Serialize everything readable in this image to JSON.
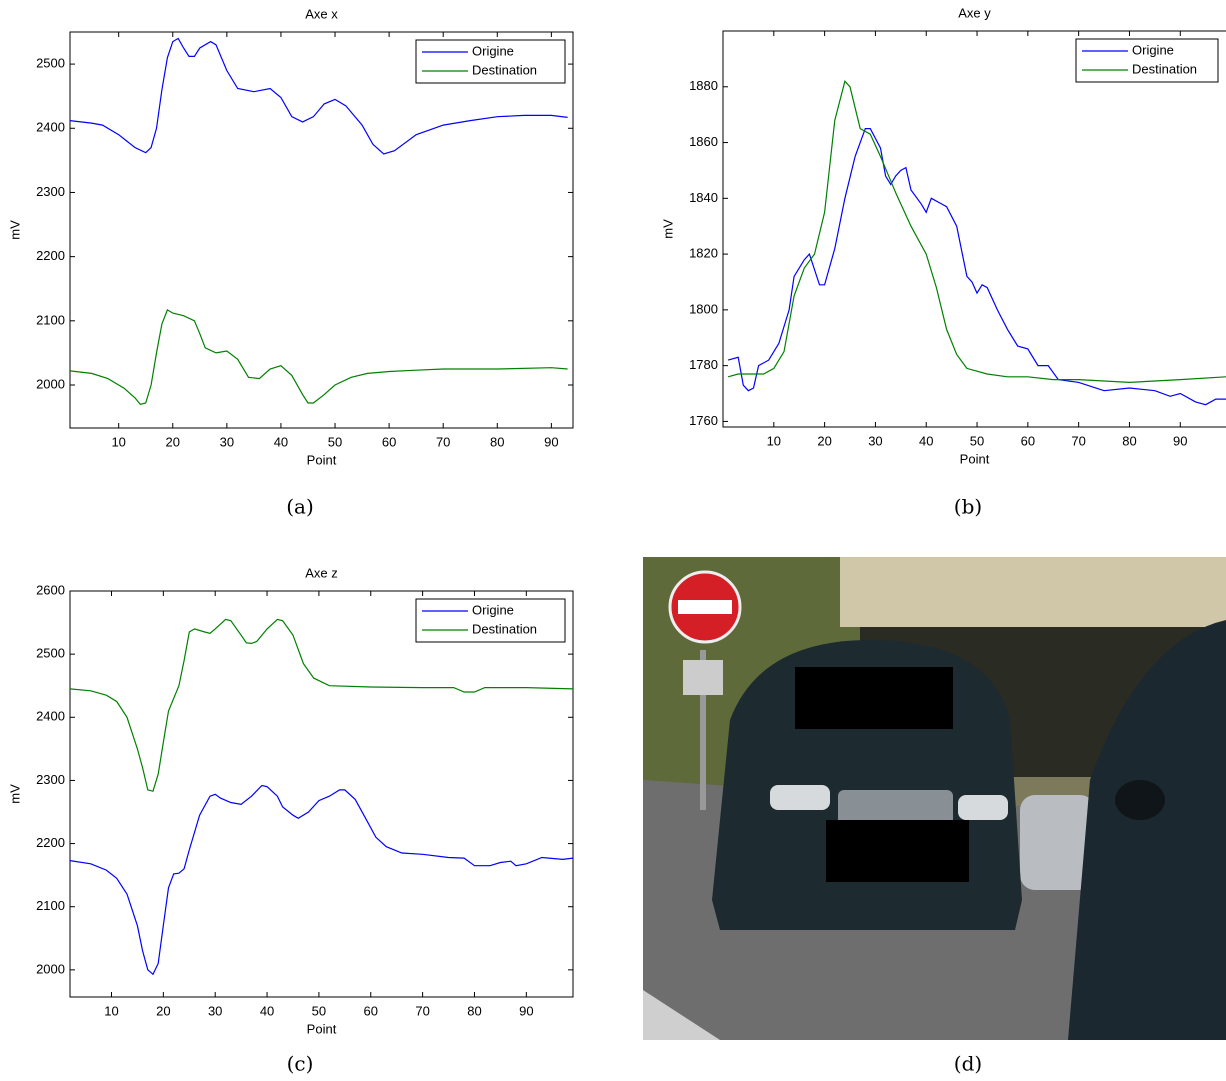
{
  "chart_data": [
    {
      "type": "line",
      "title": "Axe x",
      "xlabel": "Point",
      "ylabel": "mV",
      "legend": "upper right",
      "grid": false,
      "xlim": [
        1,
        94
      ],
      "xticks": [
        10,
        20,
        30,
        40,
        50,
        60,
        70,
        80,
        90
      ],
      "ylim": [
        1933,
        2550
      ],
      "yticks": [
        2000,
        2100,
        2200,
        2300,
        2400,
        2500
      ],
      "series": [
        {
          "name": "Origine",
          "color": "#0000ff",
          "x": [
            1,
            5,
            7,
            10,
            13,
            15,
            16,
            17,
            18,
            19,
            20,
            21,
            22,
            23,
            24,
            25,
            27,
            28,
            30,
            32,
            35,
            38,
            40,
            42,
            44,
            46,
            48,
            50,
            52,
            55,
            57,
            59,
            61,
            65,
            70,
            75,
            80,
            85,
            90,
            93
          ],
          "values": [
            2412,
            2408,
            2405,
            2390,
            2370,
            2362,
            2370,
            2400,
            2460,
            2510,
            2535,
            2540,
            2525,
            2512,
            2512,
            2525,
            2535,
            2530,
            2490,
            2462,
            2457,
            2462,
            2448,
            2418,
            2410,
            2418,
            2438,
            2445,
            2435,
            2405,
            2375,
            2360,
            2365,
            2390,
            2405,
            2412,
            2418,
            2420,
            2420,
            2417
          ]
        },
        {
          "name": "Destination",
          "color": "#008000",
          "x": [
            1,
            5,
            8,
            11,
            13,
            14,
            15,
            16,
            17,
            18,
            19,
            20,
            22,
            24,
            25,
            26,
            28,
            30,
            32,
            34,
            36,
            38,
            40,
            42,
            44,
            45,
            46,
            48,
            50,
            53,
            56,
            60,
            65,
            70,
            80,
            90,
            93
          ],
          "values": [
            2022,
            2018,
            2010,
            1995,
            1980,
            1970,
            1972,
            2000,
            2050,
            2095,
            2117,
            2112,
            2108,
            2100,
            2080,
            2058,
            2050,
            2053,
            2040,
            2012,
            2010,
            2025,
            2030,
            2015,
            1985,
            1972,
            1972,
            1985,
            2000,
            2012,
            2018,
            2021,
            2023,
            2025,
            2025,
            2027,
            2025
          ]
        }
      ]
    },
    {
      "type": "line",
      "title": "Axe y",
      "xlabel": "Point",
      "ylabel": "mV",
      "legend": "upper right",
      "grid": false,
      "xlim": [
        0,
        99
      ],
      "xticks": [
        10,
        20,
        30,
        40,
        50,
        60,
        70,
        80,
        90
      ],
      "ylim": [
        1758,
        1900
      ],
      "yticks": [
        1760,
        1780,
        1800,
        1820,
        1840,
        1860,
        1880
      ],
      "series": [
        {
          "name": "Origine",
          "color": "#0000ff",
          "x": [
            1,
            3,
            4,
            5,
            6,
            7,
            9,
            11,
            13,
            14,
            16,
            17,
            19,
            20,
            22,
            24,
            26,
            28,
            29,
            31,
            32,
            33,
            34,
            35,
            36,
            37,
            39,
            40,
            41,
            43,
            44,
            46,
            48,
            49,
            50,
            51,
            52,
            54,
            56,
            58,
            60,
            62,
            64,
            66,
            70,
            75,
            80,
            85,
            88,
            90,
            93,
            95,
            97,
            99
          ],
          "values": [
            1782,
            1783,
            1773,
            1771,
            1772,
            1780,
            1782,
            1788,
            1800,
            1812,
            1818,
            1820,
            1809,
            1809,
            1822,
            1840,
            1855,
            1865,
            1865,
            1858,
            1848,
            1845,
            1848,
            1850,
            1851,
            1843,
            1838,
            1835,
            1840,
            1838,
            1837,
            1830,
            1812,
            1810,
            1806,
            1809,
            1808,
            1800,
            1793,
            1787,
            1786,
            1780,
            1780,
            1775,
            1774,
            1771,
            1772,
            1771,
            1769,
            1770,
            1767,
            1766,
            1768,
            1768
          ]
        },
        {
          "name": "Destination",
          "color": "#008000",
          "x": [
            1,
            3,
            8,
            10,
            12,
            14,
            16,
            18,
            20,
            22,
            24,
            25,
            27,
            29,
            31,
            34,
            37,
            40,
            42,
            44,
            46,
            48,
            52,
            56,
            60,
            65,
            70,
            80,
            90,
            99
          ],
          "values": [
            1776,
            1777,
            1777,
            1779,
            1785,
            1805,
            1815,
            1820,
            1835,
            1868,
            1882,
            1880,
            1865,
            1863,
            1855,
            1842,
            1830,
            1820,
            1808,
            1793,
            1784,
            1779,
            1777,
            1776,
            1776,
            1775,
            1775,
            1774,
            1775,
            1776
          ]
        }
      ]
    },
    {
      "type": "line",
      "title": "Axe z",
      "xlabel": "Point",
      "ylabel": "mV",
      "legend": "upper right",
      "grid": false,
      "xlim": [
        2,
        99
      ],
      "xticks": [
        10,
        20,
        30,
        40,
        50,
        60,
        70,
        80,
        90
      ],
      "ylim": [
        1957,
        2600
      ],
      "yticks": [
        2000,
        2100,
        2200,
        2300,
        2400,
        2500,
        2600
      ],
      "series": [
        {
          "name": "Origine",
          "color": "#0000ff",
          "x": [
            2,
            6,
            9,
            11,
            13,
            15,
            16,
            17,
            18,
            19,
            20,
            21,
            22,
            23,
            24,
            25,
            27,
            29,
            30,
            31,
            33,
            35,
            37,
            39,
            40,
            42,
            43,
            45,
            46,
            48,
            50,
            52,
            54,
            55,
            57,
            59,
            61,
            63,
            66,
            70,
            75,
            78,
            80,
            83,
            85,
            87,
            88,
            90,
            93,
            97,
            99
          ],
          "values": [
            2173,
            2168,
            2158,
            2145,
            2120,
            2070,
            2030,
            2000,
            1993,
            2010,
            2070,
            2130,
            2152,
            2153,
            2160,
            2190,
            2245,
            2275,
            2278,
            2272,
            2265,
            2262,
            2275,
            2292,
            2290,
            2275,
            2258,
            2245,
            2240,
            2250,
            2268,
            2275,
            2285,
            2285,
            2270,
            2240,
            2210,
            2195,
            2185,
            2183,
            2178,
            2177,
            2165,
            2165,
            2170,
            2172,
            2165,
            2168,
            2178,
            2175,
            2177
          ]
        },
        {
          "name": "Destination",
          "color": "#008000",
          "x": [
            2,
            6,
            9,
            11,
            13,
            15,
            16,
            17,
            18,
            19,
            20,
            21,
            23,
            24,
            25,
            26,
            28,
            29,
            30,
            32,
            33,
            35,
            36,
            37,
            38,
            40,
            42,
            43,
            45,
            47,
            49,
            52,
            60,
            70,
            76,
            78,
            80,
            82,
            90,
            99
          ],
          "values": [
            2445,
            2442,
            2435,
            2425,
            2400,
            2350,
            2320,
            2285,
            2283,
            2310,
            2360,
            2410,
            2450,
            2490,
            2535,
            2540,
            2535,
            2533,
            2540,
            2555,
            2553,
            2530,
            2518,
            2517,
            2520,
            2540,
            2555,
            2553,
            2530,
            2485,
            2462,
            2450,
            2448,
            2447,
            2447,
            2440,
            2440,
            2447,
            2447,
            2445
          ]
        }
      ]
    }
  ],
  "captions": [
    "(a)",
    "(b)",
    "(c)",
    "(d)"
  ]
}
